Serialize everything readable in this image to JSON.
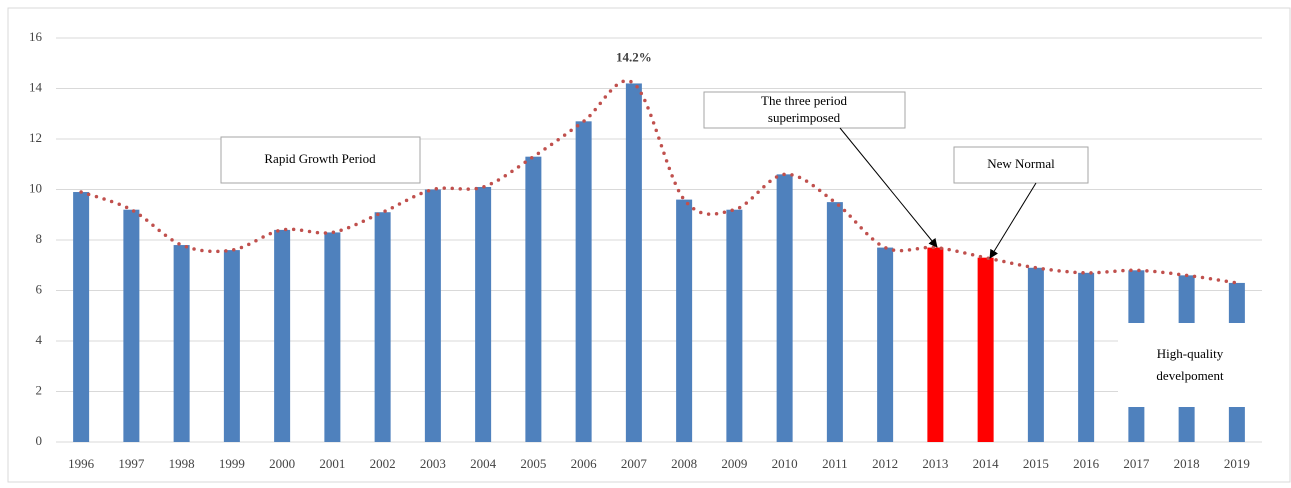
{
  "chart_data": {
    "type": "bar",
    "categories": [
      "1996",
      "1997",
      "1998",
      "1999",
      "2000",
      "2001",
      "2002",
      "2003",
      "2004",
      "2005",
      "2006",
      "2007",
      "2008",
      "2009",
      "2010",
      "2011",
      "2012",
      "2013",
      "2014",
      "2015",
      "2016",
      "2017",
      "2018",
      "2019"
    ],
    "values": [
      9.9,
      9.2,
      7.8,
      7.6,
      8.4,
      8.3,
      9.1,
      10.0,
      10.1,
      11.3,
      12.7,
      14.2,
      9.6,
      9.2,
      10.6,
      9.5,
      7.7,
      7.7,
      7.3,
      6.9,
      6.7,
      6.8,
      6.6,
      6.3
    ],
    "value_labels": [
      null,
      null,
      null,
      null,
      null,
      null,
      null,
      null,
      null,
      null,
      null,
      "14.2%",
      null,
      null,
      null,
      null,
      null,
      null,
      null,
      null,
      null,
      null,
      null,
      null
    ],
    "colors": [
      "#4f81bd",
      "#4f81bd",
      "#4f81bd",
      "#4f81bd",
      "#4f81bd",
      "#4f81bd",
      "#4f81bd",
      "#4f81bd",
      "#4f81bd",
      "#4f81bd",
      "#4f81bd",
      "#4f81bd",
      "#4f81bd",
      "#4f81bd",
      "#4f81bd",
      "#4f81bd",
      "#4f81bd",
      "#ff0000",
      "#ff0000",
      "#4f81bd",
      "#4f81bd",
      "#4f81bd",
      "#4f81bd",
      "#4f81bd"
    ],
    "line_color": "#c0504d",
    "ylim": [
      0,
      16
    ],
    "yticks": [
      0,
      2,
      4,
      6,
      8,
      10,
      12,
      14,
      16
    ],
    "grid": true,
    "annotations": [
      {
        "lines": [
          "Rapid Growth Period"
        ]
      },
      {
        "lines": [
          "The three period",
          "superimposed"
        ]
      },
      {
        "lines": [
          "New Normal"
        ]
      },
      {
        "lines": [
          "High-quality",
          "develpoment"
        ]
      }
    ]
  }
}
